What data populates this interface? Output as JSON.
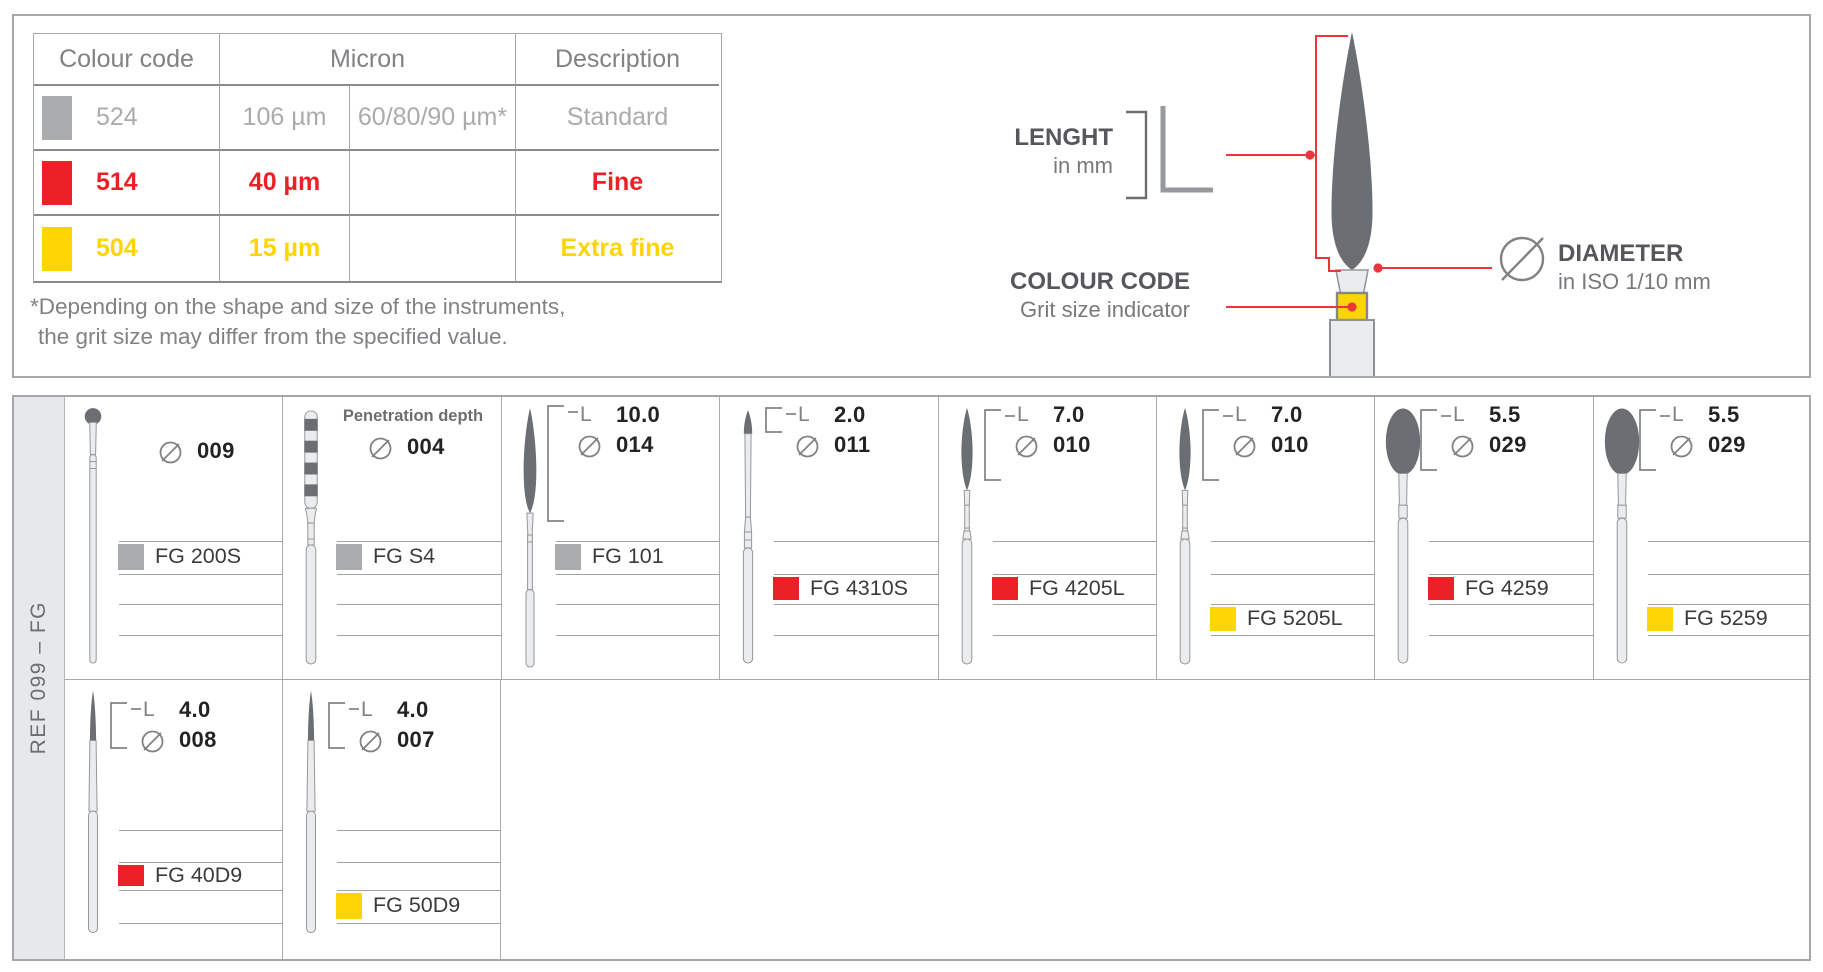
{
  "legend": {
    "headers": {
      "colour_code": "Colour code",
      "micron": "Micron",
      "description": "Description"
    },
    "rows": [
      {
        "code": "524",
        "micron_a": "106 µm",
        "micron_b": "60/80/90 µm*",
        "description": "Standard",
        "color": "#a9abad",
        "bold": false
      },
      {
        "code": "514",
        "micron_a": "40 µm",
        "micron_b": "",
        "description": "Fine",
        "color": "#ec2127",
        "bold": true
      },
      {
        "code": "504",
        "micron_a": "15 µm",
        "micron_b": "",
        "description": "Extra fine",
        "color": "#fdd404",
        "bold": true
      }
    ],
    "footnote_line1": "*Depending on the shape and size of the instruments,",
    "footnote_line2": "the grit size may differ from the specified value."
  },
  "diagram": {
    "length_label": "LENGHT",
    "length_sub": "in mm",
    "length_symbol": "L",
    "colour_code_label": "COLOUR CODE",
    "colour_code_sub": "Grit size indicator",
    "diameter_label": "DIAMETER",
    "diameter_sub": "in ISO 1/10 mm",
    "accent_red": "#e8363c",
    "band_yellow": "#fdd404"
  },
  "catalog": {
    "ref_label": "REF 099 – FG",
    "grit_colors": {
      "standard": "#a9abad",
      "fine": "#ec2127",
      "extra_fine": "#fdd404"
    },
    "rows": [
      [
        {
          "code": "FG 200S",
          "grit": "standard",
          "diameter": "009",
          "length": "",
          "shape": "round",
          "note": ""
        },
        {
          "code": "FG S4",
          "grit": "standard",
          "diameter": "004",
          "length": "",
          "shape": "depth-marked",
          "note": "Penetration depth"
        },
        {
          "code": "FG 101",
          "grit": "standard",
          "diameter": "014",
          "length": "10.0",
          "shape": "long-flame",
          "note": ""
        },
        {
          "code": "FG 4310S",
          "grit": "fine",
          "diameter": "011",
          "length": "2.0",
          "shape": "cone-tip",
          "note": ""
        },
        {
          "code": "FG 4205L",
          "grit": "fine",
          "diameter": "010",
          "length": "7.0",
          "shape": "flame",
          "note": ""
        },
        {
          "code": "FG 5205L",
          "grit": "extra_fine",
          "diameter": "010",
          "length": "7.0",
          "shape": "flame",
          "note": ""
        },
        {
          "code": "FG 4259",
          "grit": "fine",
          "diameter": "029",
          "length": "5.5",
          "shape": "egg",
          "note": ""
        },
        {
          "code": "FG 5259",
          "grit": "extra_fine",
          "diameter": "029",
          "length": "5.5",
          "shape": "egg",
          "note": ""
        }
      ],
      [
        {
          "code": "FG 40D9",
          "grit": "fine",
          "diameter": "008",
          "length": "4.0",
          "shape": "needle",
          "note": ""
        },
        {
          "code": "FG 50D9",
          "grit": "extra_fine",
          "diameter": "007",
          "length": "4.0",
          "shape": "needle",
          "note": ""
        }
      ]
    ]
  }
}
